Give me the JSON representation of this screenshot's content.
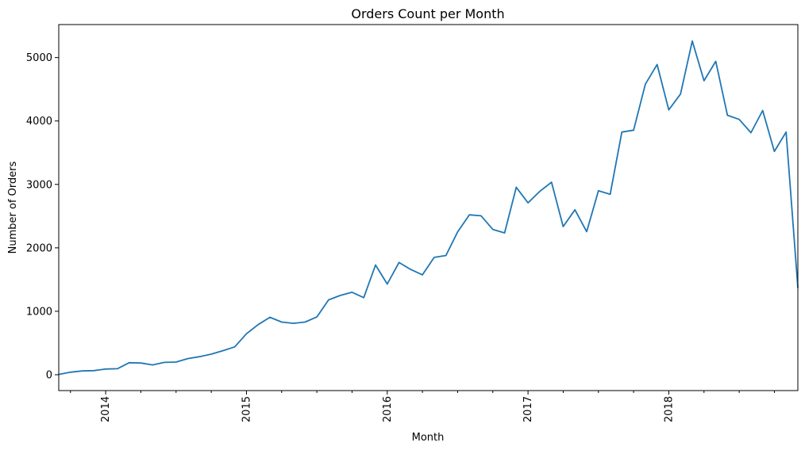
{
  "chart_data": {
    "type": "line",
    "title": "Orders Count per Month",
    "xlabel": "Month",
    "ylabel": "Number of Orders",
    "x_tick_labels": [
      "2014",
      "2015",
      "2016",
      "2017",
      "2018"
    ],
    "y_ticks": [
      0,
      1000,
      2000,
      3000,
      4000,
      5000
    ],
    "ylim": [
      -250,
      5520
    ],
    "xlim": [
      "2013-09",
      "2018-12"
    ],
    "grid": false,
    "legend": "none",
    "line_color": "#1f77b4",
    "series": [
      {
        "x": [
          "2013-09",
          "2013-10",
          "2013-11",
          "2013-12",
          "2014-01",
          "2014-02",
          "2014-03",
          "2014-04",
          "2014-05",
          "2014-06",
          "2014-07",
          "2014-08",
          "2014-09",
          "2014-10",
          "2014-11",
          "2014-12",
          "2015-01",
          "2015-02",
          "2015-03",
          "2015-04",
          "2015-05",
          "2015-06",
          "2015-07",
          "2015-08",
          "2015-09",
          "2015-10",
          "2015-11",
          "2015-12",
          "2016-01",
          "2016-02",
          "2016-03",
          "2016-04",
          "2016-05",
          "2016-06",
          "2016-07",
          "2016-08",
          "2016-09",
          "2016-10",
          "2016-11",
          "2016-12",
          "2017-01",
          "2017-02",
          "2017-03",
          "2017-04",
          "2017-05",
          "2017-06",
          "2017-07",
          "2017-08",
          "2017-09",
          "2017-10",
          "2017-11",
          "2017-12",
          "2018-01",
          "2018-02",
          "2018-03",
          "2018-04",
          "2018-05",
          "2018-06",
          "2018-07",
          "2018-08",
          "2018-09",
          "2018-10",
          "2018-11",
          "2018-12"
        ],
        "values": [
          5,
          40,
          60,
          65,
          90,
          95,
          190,
          185,
          155,
          195,
          200,
          255,
          285,
          325,
          380,
          440,
          645,
          790,
          905,
          830,
          810,
          830,
          910,
          1180,
          1250,
          1300,
          1215,
          1730,
          1430,
          1770,
          1660,
          1575,
          1850,
          1880,
          2250,
          2520,
          2505,
          2290,
          2235,
          2955,
          2710,
          2890,
          3035,
          2335,
          2600,
          2255,
          2900,
          2845,
          3825,
          3855,
          4580,
          4890,
          4175,
          4425,
          5260,
          4635,
          4940,
          4090,
          4025,
          3815,
          4165,
          3520,
          3825,
          1375
        ]
      }
    ]
  }
}
